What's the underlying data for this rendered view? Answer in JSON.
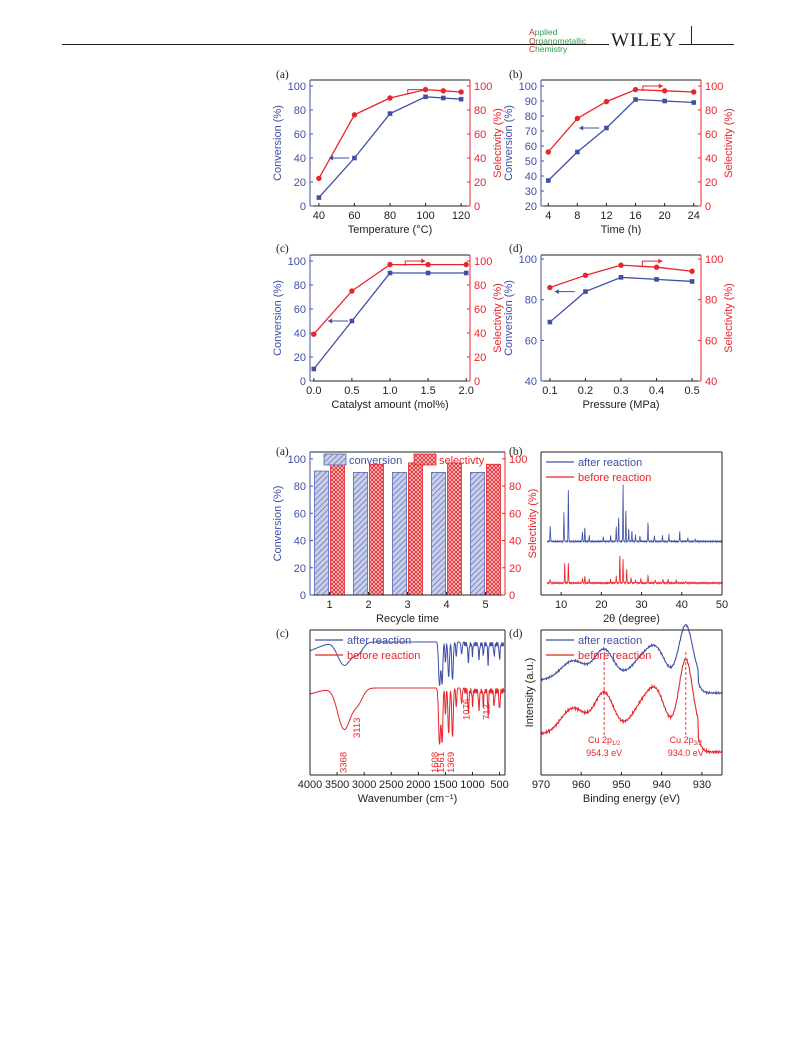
{
  "header": {
    "journal_lines": [
      "Applied",
      "Organometallic",
      "Chemistry"
    ],
    "publisher": "WILEY"
  },
  "colors": {
    "blue": "#3f4fa6",
    "red": "#e8252b",
    "hatch_blue": "#5566b5",
    "hatch_red": "#e8252b"
  },
  "chart_data": [
    {
      "id": "fig1a",
      "label": "(a)",
      "type": "line",
      "xlabel": "Temperature (°C)",
      "ylabel_left": "Conversion (%)",
      "ylabel_right": "Selectivity (%)",
      "xlim": [
        35,
        125
      ],
      "ylim_left": [
        0,
        105
      ],
      "ylim_right": [
        0,
        105
      ],
      "xticks": [
        40,
        60,
        80,
        100,
        120
      ],
      "yticks_left": [
        0,
        20,
        40,
        60,
        80,
        100
      ],
      "yticks_right": [
        0,
        20,
        40,
        60,
        80,
        100
      ],
      "series": [
        {
          "axis": "left",
          "color": "blue",
          "marker": "square",
          "x": [
            40,
            60,
            80,
            100,
            110,
            120
          ],
          "y": [
            7,
            40,
            77,
            91,
            90,
            89
          ]
        },
        {
          "axis": "right",
          "color": "red",
          "marker": "circle",
          "x": [
            40,
            60,
            80,
            100,
            110,
            120
          ],
          "y": [
            23,
            76,
            90,
            97,
            96,
            95
          ]
        }
      ],
      "arrows": [
        {
          "dir": "left",
          "x": 57,
          "y": 40,
          "axis": "left"
        },
        {
          "dir": "right",
          "x": 90,
          "y": 97,
          "axis": "right"
        }
      ]
    },
    {
      "id": "fig1b",
      "label": "(b)",
      "type": "line",
      "xlabel": "Time (h)",
      "ylabel_left": "Conversion (%)",
      "ylabel_right": "Selectivity (%)",
      "xlim": [
        3,
        25
      ],
      "ylim_left": [
        20,
        104
      ],
      "ylim_right": [
        0,
        105
      ],
      "xticks": [
        4,
        8,
        12,
        16,
        20,
        24
      ],
      "yticks_left": [
        20,
        30,
        40,
        50,
        60,
        70,
        80,
        90,
        100
      ],
      "yticks_right": [
        0,
        20,
        40,
        60,
        80,
        100
      ],
      "series": [
        {
          "axis": "left",
          "color": "blue",
          "marker": "square",
          "x": [
            4,
            8,
            12,
            16,
            20,
            24
          ],
          "y": [
            37,
            56,
            72,
            91,
            90,
            89
          ]
        },
        {
          "axis": "right",
          "color": "red",
          "marker": "circle",
          "x": [
            4,
            8,
            12,
            16,
            20,
            24
          ],
          "y": [
            45,
            73,
            87,
            97,
            96,
            95
          ]
        }
      ],
      "arrows": [
        {
          "dir": "left",
          "x": 11,
          "y": 72,
          "axis": "left"
        },
        {
          "dir": "right",
          "x": 17,
          "y": 100,
          "axis": "right"
        }
      ]
    },
    {
      "id": "fig1c",
      "label": "(c)",
      "type": "line",
      "xlabel": "Catalyst amount (mol%)",
      "ylabel_left": "Conversion (%)",
      "ylabel_right": "Selectivity (%)",
      "xlim": [
        -0.05,
        2.05
      ],
      "ylim_left": [
        0,
        105
      ],
      "ylim_right": [
        0,
        105
      ],
      "xticks": [
        0.0,
        0.5,
        1.0,
        1.5,
        2.0
      ],
      "yticks_left": [
        0,
        20,
        40,
        60,
        80,
        100
      ],
      "yticks_right": [
        0,
        20,
        40,
        60,
        80,
        100
      ],
      "xtick_labels": [
        "0.0",
        "0.5",
        "1.0",
        "1.5",
        "2.0"
      ],
      "series": [
        {
          "axis": "left",
          "color": "blue",
          "marker": "square",
          "x": [
            0.0,
            0.5,
            1.0,
            1.5,
            2.0
          ],
          "y": [
            10,
            50,
            90,
            90,
            90
          ]
        },
        {
          "axis": "right",
          "color": "red",
          "marker": "circle",
          "x": [
            0.0,
            0.5,
            1.0,
            1.5,
            2.0
          ],
          "y": [
            39,
            75,
            97,
            97,
            97
          ]
        }
      ],
      "arrows": [
        {
          "dir": "left",
          "x": 0.45,
          "y": 50,
          "axis": "left"
        },
        {
          "dir": "right",
          "x": 1.2,
          "y": 100,
          "axis": "right"
        }
      ]
    },
    {
      "id": "fig1d",
      "label": "(d)",
      "type": "line",
      "xlabel": "Pressure (MPa)",
      "ylabel_left": "Conversion (%)",
      "ylabel_right": "Selectivity (%)",
      "xlim": [
        0.075,
        0.525
      ],
      "ylim_left": [
        40,
        102
      ],
      "ylim_right": [
        40,
        102
      ],
      "xticks": [
        0.1,
        0.2,
        0.3,
        0.4,
        0.5
      ],
      "yticks_left": [
        40,
        60,
        80,
        100
      ],
      "yticks_right": [
        40,
        60,
        80,
        100
      ],
      "xtick_labels": [
        "0.1",
        "0.2",
        "0.3",
        "0.4",
        "0.5"
      ],
      "series": [
        {
          "axis": "left",
          "color": "blue",
          "marker": "square",
          "x": [
            0.1,
            0.2,
            0.3,
            0.4,
            0.5
          ],
          "y": [
            69,
            84,
            91,
            90,
            89
          ]
        },
        {
          "axis": "right",
          "color": "red",
          "marker": "circle",
          "x": [
            0.1,
            0.2,
            0.3,
            0.4,
            0.5
          ],
          "y": [
            86,
            92,
            97,
            96,
            94
          ]
        }
      ],
      "arrows": [
        {
          "dir": "left",
          "x": 0.17,
          "y": 84,
          "axis": "left"
        },
        {
          "dir": "right",
          "x": 0.36,
          "y": 99,
          "axis": "right"
        }
      ]
    },
    {
      "id": "fig2a",
      "label": "(a)",
      "type": "bar",
      "xlabel": "Recycle time",
      "ylabel_left": "Conversion (%)",
      "ylabel_right": "Selectivity (%)",
      "categories": [
        "1",
        "2",
        "3",
        "4",
        "5"
      ],
      "ylim_left": [
        0,
        105
      ],
      "ylim_right": [
        0,
        105
      ],
      "yticks_left": [
        0,
        20,
        40,
        60,
        80,
        100
      ],
      "yticks_right": [
        0,
        20,
        40,
        60,
        80,
        100
      ],
      "series": [
        {
          "name": "conversion",
          "axis": "left",
          "color": "hatch_blue",
          "values": [
            91,
            90,
            90,
            90,
            90
          ]
        },
        {
          "name": "selectivty",
          "axis": "right",
          "color": "hatch_red",
          "values": [
            97,
            96,
            97,
            97,
            96
          ]
        }
      ],
      "legend_position": "top"
    },
    {
      "id": "fig2b",
      "label": "(b)",
      "type": "line",
      "xlabel": "2θ (degree)",
      "xlim": [
        5,
        50
      ],
      "xticks": [
        10,
        20,
        30,
        40,
        50
      ],
      "series": [
        {
          "name": "after reaction",
          "color": "blue",
          "offset": 0.55,
          "peaks": [
            [
              7.3,
              0.22
            ],
            [
              10.7,
              0.4
            ],
            [
              11.8,
              0.75
            ],
            [
              15.3,
              0.15
            ],
            [
              15.9,
              0.2
            ],
            [
              17.0,
              0.08
            ],
            [
              20.5,
              0.06
            ],
            [
              22.3,
              0.08
            ],
            [
              23.7,
              0.22
            ],
            [
              24.3,
              0.35
            ],
            [
              25.4,
              0.78
            ],
            [
              26.1,
              0.45
            ],
            [
              26.8,
              0.18
            ],
            [
              27.6,
              0.14
            ],
            [
              28.5,
              0.1
            ],
            [
              29.6,
              0.08
            ],
            [
              31.6,
              0.28
            ],
            [
              33.2,
              0.08
            ],
            [
              35.2,
              0.08
            ],
            [
              36.8,
              0.1
            ],
            [
              39.5,
              0.14
            ],
            [
              41.5,
              0.05
            ],
            [
              43.3,
              0.04
            ]
          ]
        },
        {
          "name": "before reaction",
          "color": "red",
          "offset": 0.0,
          "peaks": [
            [
              7.3,
              0.06
            ],
            [
              10.9,
              0.28
            ],
            [
              11.8,
              0.3
            ],
            [
              15.3,
              0.07
            ],
            [
              15.9,
              0.1
            ],
            [
              17.0,
              0.05
            ],
            [
              22.3,
              0.05
            ],
            [
              23.7,
              0.1
            ],
            [
              24.6,
              0.4
            ],
            [
              25.4,
              0.33
            ],
            [
              26.3,
              0.2
            ],
            [
              27.4,
              0.08
            ],
            [
              28.5,
              0.05
            ],
            [
              29.8,
              0.06
            ],
            [
              31.6,
              0.12
            ],
            [
              33.4,
              0.05
            ],
            [
              35.3,
              0.06
            ],
            [
              36.6,
              0.05
            ],
            [
              38.6,
              0.04
            ],
            [
              41.0,
              0.03
            ]
          ]
        }
      ],
      "legend_position": "top-left"
    },
    {
      "id": "fig2c",
      "label": "(c)",
      "type": "line",
      "xlabel": "Wavenumber (cm⁻¹)",
      "xlim": [
        4000,
        400
      ],
      "xticks": [
        4000,
        3500,
        3000,
        2500,
        2000,
        1500,
        1000,
        500
      ],
      "series": [
        {
          "name": "after reaction",
          "color": "blue"
        },
        {
          "name": "before reaction",
          "color": "red"
        }
      ],
      "annotations": [
        "3368",
        "3113",
        "1608",
        "1561",
        "1369",
        "1076",
        "712"
      ],
      "legend_position": "top-left"
    },
    {
      "id": "fig2d",
      "label": "(d)",
      "type": "line",
      "xlabel": "Binding energy (eV)",
      "ylabel": "Intensity (a.u.)",
      "xlim": [
        970,
        925
      ],
      "xticks": [
        970,
        960,
        950,
        940,
        930
      ],
      "series": [
        {
          "name": "after reaction",
          "color": "blue"
        },
        {
          "name": "before reaction",
          "color": "red"
        }
      ],
      "annotations": [
        {
          "line1": "Cu 2p",
          "sub": "1/2",
          "line2": "954.3 eV",
          "x": 954.3
        },
        {
          "line1": "Cu 2p",
          "sub": "3/2",
          "line2": "934.0 eV",
          "x": 934.0
        }
      ],
      "legend_position": "top-left"
    }
  ]
}
